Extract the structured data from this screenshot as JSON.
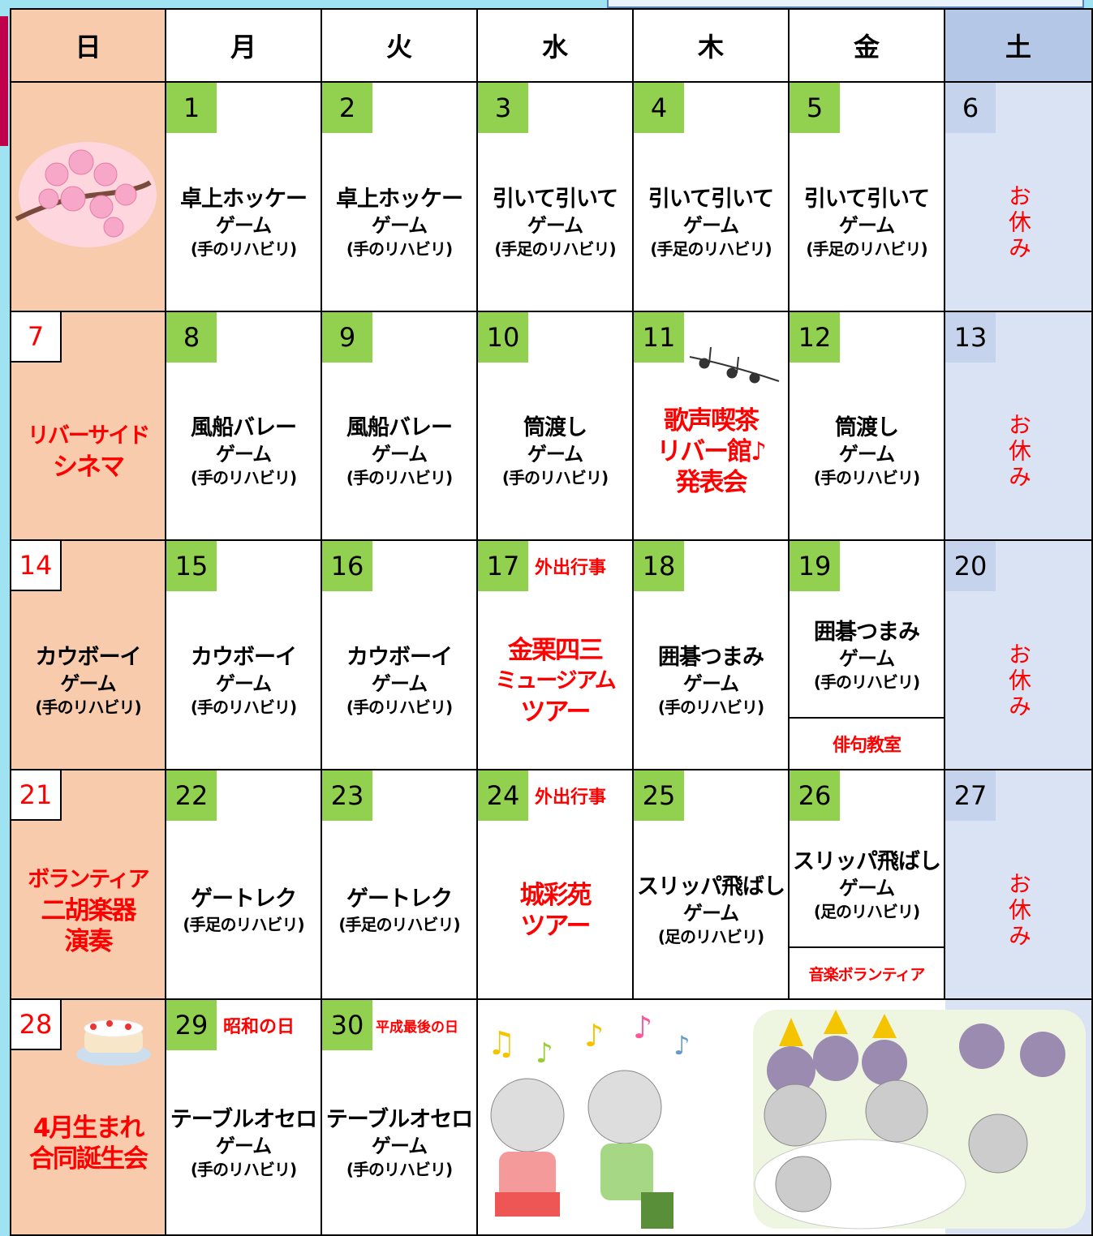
{
  "weekdays": [
    "日",
    "月",
    "火",
    "水",
    "木",
    "金",
    "土"
  ],
  "weeks": [
    {
      "cells": [
        null,
        {
          "date": "1",
          "title": [
            "卓上ホッケー",
            "ゲーム"
          ],
          "detail": "(手のリハビリ)"
        },
        {
          "date": "2",
          "title": [
            "卓上ホッケー",
            "ゲーム"
          ],
          "detail": "(手のリハビリ)"
        },
        {
          "date": "3",
          "title": [
            "引いて引いて",
            "ゲーム"
          ],
          "detail": "(手足のリハビリ)"
        },
        {
          "date": "4",
          "title": [
            "引いて引いて",
            "ゲーム"
          ],
          "detail": "(手足のリハビリ)"
        },
        {
          "date": "5",
          "title": [
            "引いて引いて",
            "ゲーム"
          ],
          "detail": "(手足のリハビリ)"
        },
        {
          "date": "6",
          "off": "お休み"
        }
      ]
    },
    {
      "cells": [
        {
          "date": "7",
          "event": [
            "リバーサイド",
            "シネマ"
          ]
        },
        {
          "date": "8",
          "title": [
            "風船バレー",
            "ゲーム"
          ],
          "detail": "(手のリハビリ)"
        },
        {
          "date": "9",
          "title": [
            "風船バレー",
            "ゲーム"
          ],
          "detail": "(手のリハビリ)"
        },
        {
          "date": "10",
          "title": [
            "筒渡し",
            "ゲーム"
          ],
          "detail": "(手のリハビリ)"
        },
        {
          "date": "11",
          "event": [
            "歌声喫茶",
            "リバー館♪",
            "発表会"
          ]
        },
        {
          "date": "12",
          "title": [
            "筒渡し",
            "ゲーム"
          ],
          "detail": "(手のリハビリ)"
        },
        {
          "date": "13",
          "off": "お休み"
        }
      ]
    },
    {
      "cells": [
        {
          "date": "14",
          "title": [
            "カウボーイ",
            "ゲーム"
          ],
          "detail": "(手のリハビリ)"
        },
        {
          "date": "15",
          "title": [
            "カウボーイ",
            "ゲーム"
          ],
          "detail": "(手のリハビリ)"
        },
        {
          "date": "16",
          "title": [
            "カウボーイ",
            "ゲーム"
          ],
          "detail": "(手のリハビリ)"
        },
        {
          "date": "17",
          "tag": "外出行事",
          "event": [
            "金栗四三",
            "ミュージアム",
            "ツアー"
          ]
        },
        {
          "date": "18",
          "title": [
            "囲碁つまみ",
            "ゲーム"
          ],
          "detail": "(手のリハビリ)"
        },
        {
          "date": "19",
          "title": [
            "囲碁つまみ",
            "ゲーム"
          ],
          "detail": "(手のリハビリ)",
          "note": "俳句教室"
        },
        {
          "date": "20",
          "off": "お休み"
        }
      ]
    },
    {
      "cells": [
        {
          "date": "21",
          "event": [
            "ボランティア",
            "二胡楽器",
            "演奏"
          ]
        },
        {
          "date": "22",
          "title": [
            "ゲートレク"
          ],
          "detail": "(手足のリハビリ)"
        },
        {
          "date": "23",
          "title": [
            "ゲートレク"
          ],
          "detail": "(手足のリハビリ)"
        },
        {
          "date": "24",
          "tag": "外出行事",
          "event": [
            "城彩苑",
            "ツアー"
          ]
        },
        {
          "date": "25",
          "title": [
            "スリッパ飛ばし",
            "ゲーム"
          ],
          "detail": "(足のリハビリ)"
        },
        {
          "date": "26",
          "title": [
            "スリッパ飛ばし",
            "ゲーム"
          ],
          "detail": "(足のリハビリ)",
          "note": "音楽ボランティア"
        },
        {
          "date": "27",
          "off": "お休み"
        }
      ]
    },
    {
      "cells": [
        {
          "date": "28",
          "event": [
            "4月生まれ",
            "合同誕生会"
          ]
        },
        {
          "date": "29",
          "tag": "昭和の日",
          "title": [
            "テーブルオセロ",
            "ゲーム"
          ],
          "detail": "(手のリハビリ)"
        },
        {
          "date": "30",
          "tag": "平成最後の日",
          "title": [
            "テーブルオセロ",
            "ゲーム"
          ],
          "detail": "(手のリハビリ)"
        },
        null,
        null,
        null,
        null
      ]
    }
  ]
}
